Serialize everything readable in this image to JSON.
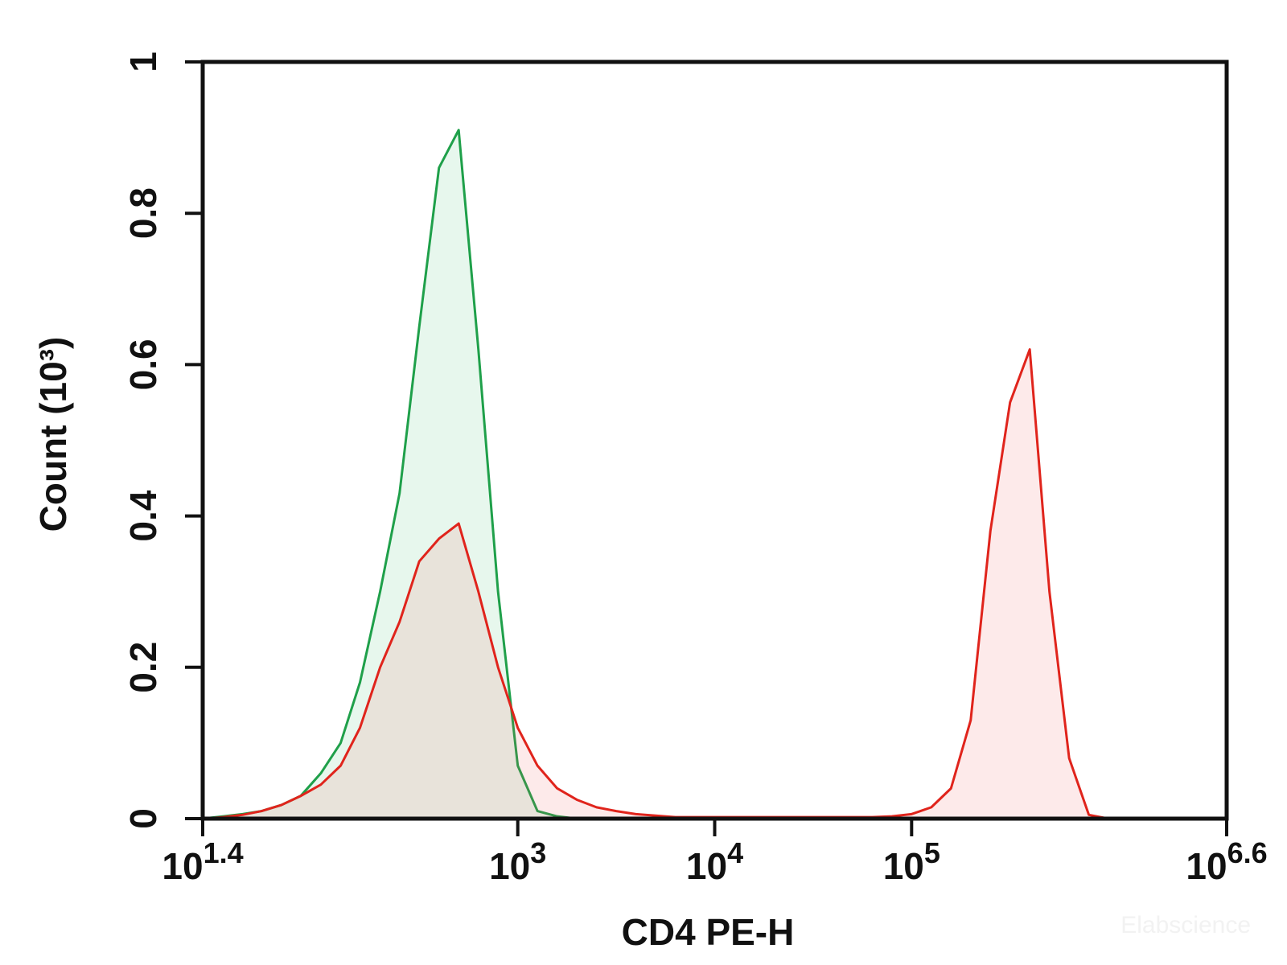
{
  "chart_data": {
    "type": "area",
    "x_label": "CD4 PE-H",
    "y_label": "Count (10³)",
    "watermark": "Elabscience",
    "x_scale": "log",
    "xlim": [
      25.1189,
      3981072
    ],
    "xticks": [
      {
        "value": 25.1189,
        "label": "10",
        "exponent": "1.4"
      },
      {
        "value": 1000,
        "label": "10",
        "exponent": "3"
      },
      {
        "value": 10000,
        "label": "10",
        "exponent": "4"
      },
      {
        "value": 100000,
        "label": "10",
        "exponent": "5"
      },
      {
        "value": 3981072,
        "label": "10",
        "exponent": "6.6"
      }
    ],
    "ylim": [
      0,
      1
    ],
    "yticks": [
      0,
      0.2,
      0.4,
      0.6,
      0.8,
      1
    ],
    "x": [
      25,
      32,
      40,
      50,
      63,
      79,
      100,
      126,
      158,
      200,
      251,
      316,
      398,
      501,
      631,
      794,
      1000,
      1259,
      1585,
      1995,
      2512,
      3162,
      3981,
      5012,
      6310,
      7943,
      10000,
      12589,
      15849,
      19953,
      25119,
      31623,
      39811,
      50119,
      63096,
      79433,
      100000,
      125893,
      158489,
      199526,
      251189,
      316228,
      398107,
      501187,
      630957,
      794328,
      1000000,
      1258925,
      1584893,
      1995262,
      2511886,
      3162278,
      3981072
    ],
    "series": [
      {
        "color": "#1fa04a",
        "fill": "rgba(60,190,110,0.12)",
        "values": [
          0,
          0.003,
          0.006,
          0.01,
          0.018,
          0.03,
          0.06,
          0.1,
          0.18,
          0.3,
          0.43,
          0.65,
          0.86,
          0.91,
          0.62,
          0.3,
          0.07,
          0.01,
          0.003,
          0,
          0,
          0,
          0,
          0,
          0,
          0,
          0,
          0,
          0,
          0,
          0,
          0,
          0,
          0,
          0,
          0,
          0,
          0,
          0,
          0,
          0,
          0,
          0,
          0,
          0,
          0,
          0,
          0,
          0,
          0,
          0,
          0,
          0
        ]
      },
      {
        "color": "#e0241c",
        "fill": "rgba(235,80,80,0.12)",
        "values": [
          0,
          0.002,
          0.005,
          0.01,
          0.018,
          0.03,
          0.045,
          0.07,
          0.12,
          0.2,
          0.26,
          0.34,
          0.37,
          0.39,
          0.3,
          0.2,
          0.12,
          0.07,
          0.04,
          0.025,
          0.015,
          0.01,
          0.006,
          0.004,
          0.002,
          0.002,
          0.002,
          0.002,
          0.002,
          0.002,
          0.002,
          0.002,
          0.002,
          0.002,
          0.002,
          0.003,
          0.006,
          0.015,
          0.04,
          0.13,
          0.38,
          0.55,
          0.62,
          0.3,
          0.08,
          0.005,
          0,
          0,
          0,
          0,
          0,
          0,
          0
        ]
      }
    ]
  }
}
